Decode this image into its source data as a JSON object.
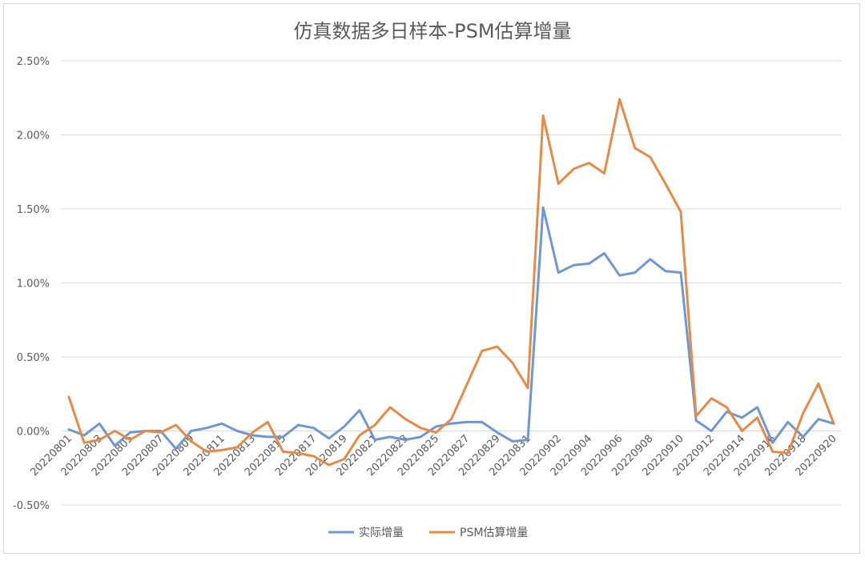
{
  "chart_data": {
    "type": "line",
    "title": "仿真数据多日样本-PSM估算增量",
    "x": [
      "20220801",
      "20220802",
      "20220803",
      "20220804",
      "20220805",
      "20220806",
      "20220807",
      "20220808",
      "20220809",
      "20220810",
      "20220811",
      "20220812",
      "20220813",
      "20220814",
      "20220815",
      "20220816",
      "20220817",
      "20220818",
      "20220819",
      "20220820",
      "20220821",
      "20220822",
      "20220823",
      "20220824",
      "20220825",
      "20220826",
      "20220827",
      "20220828",
      "20220829",
      "20220830",
      "20220831",
      "20220901",
      "20220902",
      "20220903",
      "20220904",
      "20220905",
      "20220906",
      "20220907",
      "20220908",
      "20220909",
      "20220910",
      "20220911",
      "20220912",
      "20220913",
      "20220914",
      "20220915",
      "20220916",
      "20220917",
      "20220918",
      "20220919",
      "20220920"
    ],
    "x_tick_labels": [
      "20220801",
      "20220803",
      "20220805",
      "20220807",
      "20220809",
      "20220811",
      "20220813",
      "20220815",
      "20220817",
      "20220819",
      "20220821",
      "20220823",
      "20220825",
      "20220827",
      "20220829",
      "20220831",
      "20220902",
      "20220904",
      "20220906",
      "20220908",
      "20220910",
      "20220912",
      "20220914",
      "20220916",
      "20220918",
      "20220920"
    ],
    "y_ticks": [
      "2.50%",
      "2.00%",
      "1.50%",
      "1.00%",
      "0.50%",
      "0.00%",
      "-0.50%"
    ],
    "ylim": [
      -0.5,
      2.5
    ],
    "grid": true,
    "legend_position": "bottom",
    "series": [
      {
        "name": "实际增量",
        "color": "#6e97d3",
        "values": [
          0.01,
          -0.03,
          0.05,
          -0.1,
          -0.01,
          0.0,
          0.0,
          -0.12,
          0.0,
          0.02,
          0.05,
          0.0,
          -0.03,
          -0.04,
          -0.04,
          0.04,
          0.02,
          -0.05,
          0.03,
          0.14,
          -0.06,
          -0.04,
          -0.06,
          -0.04,
          0.03,
          0.05,
          0.06,
          0.06,
          -0.01,
          -0.07,
          -0.06,
          1.51,
          1.07,
          1.12,
          1.13,
          1.2,
          1.05,
          1.07,
          1.16,
          1.08,
          1.07,
          0.07,
          0.0,
          0.13,
          0.09,
          0.16,
          -0.08,
          0.06,
          -0.04,
          0.08,
          0.05
        ]
      },
      {
        "name": "PSM估算增量",
        "color": "#e68a47",
        "values": [
          0.23,
          -0.08,
          -0.06,
          0.0,
          -0.06,
          0.0,
          -0.01,
          0.04,
          -0.07,
          -0.14,
          -0.13,
          -0.11,
          -0.01,
          0.06,
          -0.14,
          -0.15,
          -0.17,
          -0.23,
          -0.19,
          -0.03,
          0.04,
          0.16,
          0.08,
          0.02,
          -0.01,
          0.08,
          0.31,
          0.54,
          0.57,
          0.46,
          0.29,
          2.13,
          1.67,
          1.77,
          1.81,
          1.74,
          2.24,
          1.91,
          1.85,
          1.67,
          1.48,
          0.1,
          0.22,
          0.16,
          0.0,
          0.09,
          -0.14,
          -0.15,
          0.12,
          0.32,
          0.05
        ]
      }
    ]
  }
}
